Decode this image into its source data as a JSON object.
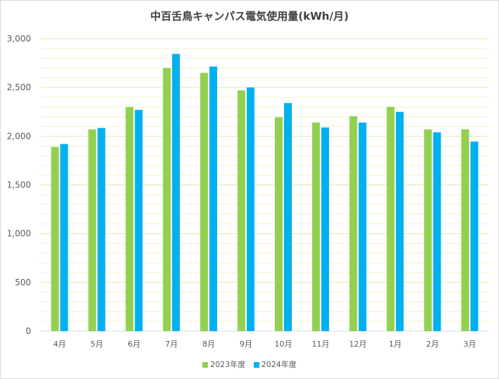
{
  "chart_data": {
    "type": "bar",
    "title": "中百舌鳥キャンパス電気使用量(kWh/月)",
    "categories": [
      "4月",
      "5月",
      "6月",
      "7月",
      "8月",
      "9月",
      "10月",
      "11月",
      "12月",
      "1月",
      "2月",
      "3月"
    ],
    "series": [
      {
        "name": "2023年度",
        "color": "#92d050",
        "values": [
          1890,
          2070,
          2300,
          2700,
          2650,
          2470,
          2195,
          2140,
          2205,
          2300,
          2070,
          2070
        ]
      },
      {
        "name": "2024年度",
        "color": "#00b0f0",
        "values": [
          1920,
          2085,
          2270,
          2845,
          2715,
          2500,
          2340,
          2090,
          2140,
          2250,
          2040,
          1945
        ]
      }
    ],
    "yticks": [
      "0",
      "500",
      "1,000",
      "1,500",
      "2,000",
      "2,500",
      "3,000"
    ],
    "ylim": [
      0,
      3000
    ],
    "grid": true,
    "legend_position": "bottom"
  }
}
